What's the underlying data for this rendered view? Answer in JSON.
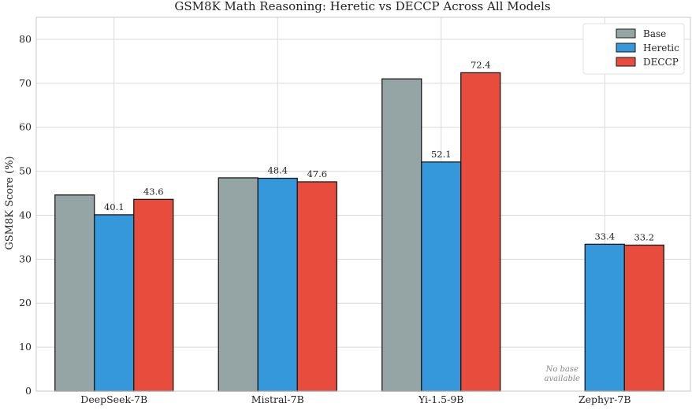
{
  "chart_data": {
    "type": "bar",
    "title": "GSM8K Math Reasoning: Heretic vs DECCP Across All Models",
    "xlabel": "",
    "ylabel": "GSM8K Score (%)",
    "ylim": [
      0,
      85
    ],
    "yticks": [
      0,
      10,
      20,
      30,
      40,
      50,
      60,
      70,
      80
    ],
    "grid": true,
    "legend_position": "top-right",
    "categories": [
      "DeepSeek-7B",
      "Mistral-7B",
      "Yi-1.5-9B",
      "Zephyr-7B"
    ],
    "series": [
      {
        "name": "Base",
        "color": "#95a5a6",
        "values": [
          44.6,
          48.5,
          71.0,
          null
        ],
        "labels": [
          null,
          null,
          null,
          null
        ]
      },
      {
        "name": "Heretic",
        "color": "#3498db",
        "values": [
          40.1,
          48.4,
          52.1,
          33.4
        ],
        "labels": [
          "40.1",
          "48.4",
          "52.1",
          "33.4"
        ]
      },
      {
        "name": "DECCP",
        "color": "#e74c3c",
        "values": [
          43.6,
          47.6,
          72.4,
          33.2
        ],
        "labels": [
          "43.6",
          "47.6",
          "72.4",
          "33.2"
        ]
      }
    ],
    "annotations": [
      {
        "category": "Zephyr-7B",
        "series": "Base",
        "text_lines": [
          "No base",
          "available"
        ]
      }
    ]
  }
}
